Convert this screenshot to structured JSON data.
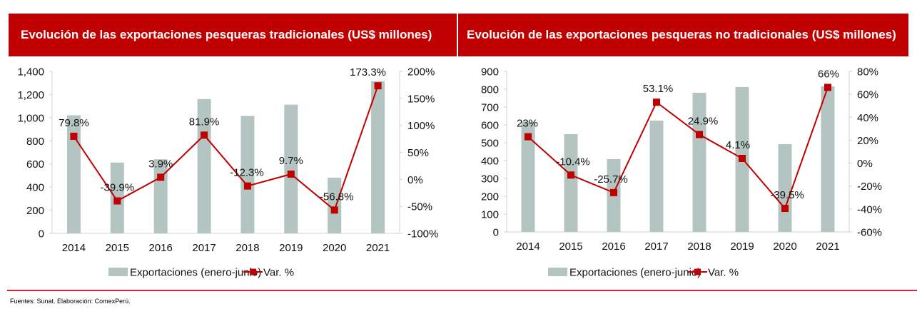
{
  "footer": {
    "source": "Fuentes: Sunat. Elaboración: ComexPerú."
  },
  "colors": {
    "header_bg": "#C00000",
    "bar": "#B3C4C1",
    "line": "#C00000",
    "divider": "#E31E3C"
  },
  "chart_data": [
    {
      "type": "bar+line",
      "title": "Evolución de las exportaciones pesqueras tradicionales (US$ millones)",
      "categories": [
        "2014",
        "2015",
        "2016",
        "2017",
        "2018",
        "2019",
        "2020",
        "2021"
      ],
      "series": [
        {
          "name": "Exportaciones (enero-junio)",
          "type": "bar",
          "axis": "left",
          "values": [
            1020,
            612,
            640,
            1160,
            1015,
            1112,
            481,
            1315
          ]
        },
        {
          "name": "Var. %",
          "type": "line",
          "axis": "right",
          "values": [
            79.8,
            -39.9,
            3.9,
            81.9,
            -12.3,
            9.7,
            -56.8,
            173.3
          ],
          "labels": [
            "79.8%",
            "-39.9%",
            "3.9%",
            "81.9%",
            "-12.3%",
            "9.7%",
            "-56.8%",
            "173.3%"
          ]
        }
      ],
      "ylim_left": [
        0,
        1400
      ],
      "yticks_left": [
        "0",
        "200",
        "400",
        "600",
        "800",
        "1,000",
        "1,200",
        "1,400"
      ],
      "ylim_right": [
        -100,
        200
      ],
      "yticks_right": [
        "-100%",
        "-50%",
        "0%",
        "50%",
        "100%",
        "150%",
        "200%"
      ],
      "legend": [
        "Exportaciones (enero-junio)",
        "Var. %"
      ],
      "legend_position": "bottom",
      "grid": false
    },
    {
      "type": "bar+line",
      "title": "Evolución de las exportaciones pesqueras no tradicionales (US$ millones)",
      "categories": [
        "2014",
        "2015",
        "2016",
        "2017",
        "2018",
        "2019",
        "2020",
        "2021"
      ],
      "series": [
        {
          "name": "Exportaciones (enero-junio)",
          "type": "bar",
          "axis": "left",
          "values": [
            618,
            548,
            408,
            624,
            780,
            812,
            492,
            816
          ]
        },
        {
          "name": "Var. %",
          "type": "line",
          "axis": "right",
          "values": [
            23,
            -10.4,
            -25.7,
            53.1,
            24.9,
            4.1,
            -39.5,
            66
          ],
          "labels": [
            "23%",
            "-10.4%",
            "-25.7%",
            "53.1%",
            "24.9%",
            "4.1%",
            "-39.5%",
            "66%"
          ]
        }
      ],
      "ylim_left": [
        0,
        900
      ],
      "yticks_left": [
        "0",
        "100",
        "200",
        "300",
        "400",
        "500",
        "600",
        "700",
        "800",
        "900"
      ],
      "ylim_right": [
        -60,
        80
      ],
      "yticks_right": [
        "-60%",
        "-40%",
        "-20%",
        "0%",
        "20%",
        "40%",
        "60%",
        "80%"
      ],
      "legend": [
        "Exportaciones (enero-junio)",
        "Var. %"
      ],
      "legend_position": "bottom",
      "grid": false
    }
  ]
}
